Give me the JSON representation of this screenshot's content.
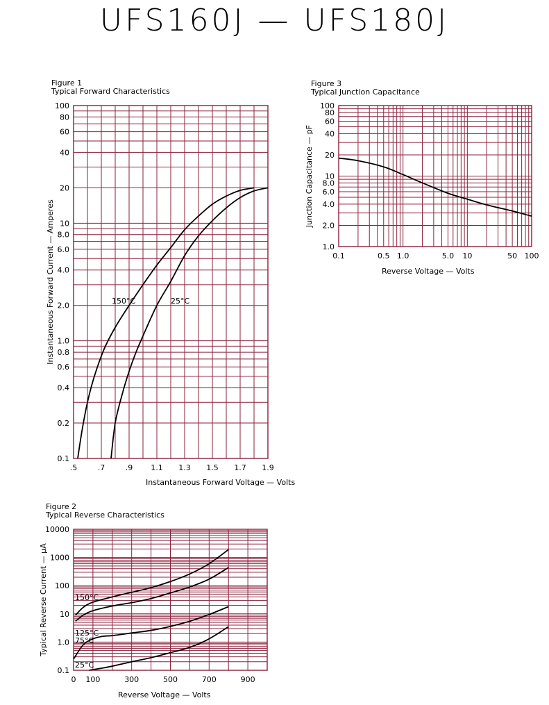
{
  "page_title": "UFS160J — UFS180J",
  "colors": {
    "grid": "#8a1f3a",
    "curve": "#000000"
  },
  "chart_data": [
    {
      "id": "fig1",
      "figure_label": "Figure 1",
      "title": "Typical Forward Characteristics",
      "type": "line",
      "xlabel": "Instantaneous Forward Voltage — Volts",
      "ylabel": "Instantaneous Forward Current — Amperes",
      "xscale": "linear",
      "yscale": "log",
      "xlim": [
        0.5,
        1.9
      ],
      "ylim": [
        0.1,
        100
      ],
      "grid": true,
      "x_ticks": [
        0.5,
        0.7,
        0.9,
        1.1,
        1.3,
        1.5,
        1.7,
        1.9
      ],
      "x_tick_labels": [
        ".5",
        ".7",
        ".9",
        "1.1",
        "1.3",
        "1.5",
        "1.7",
        "1.9"
      ],
      "x_grid": [
        0.5,
        0.6,
        0.7,
        0.8,
        0.9,
        1.0,
        1.1,
        1.2,
        1.3,
        1.4,
        1.5,
        1.6,
        1.7,
        1.8,
        1.9
      ],
      "y_ticks": [
        0.1,
        0.2,
        0.4,
        0.6,
        0.8,
        1.0,
        2.0,
        4.0,
        6.0,
        8.0,
        10,
        20,
        40,
        60,
        80,
        100
      ],
      "y_tick_labels": [
        "0.1",
        "0.2",
        "0.4",
        "0.6",
        "0.8",
        "1.0",
        "2.0",
        "4.0",
        "6.0",
        "8.0",
        "10",
        "20",
        "40",
        "60",
        "80",
        "100"
      ],
      "y_grid": [
        0.1,
        0.2,
        0.3,
        0.4,
        0.5,
        0.6,
        0.7,
        0.8,
        0.9,
        1,
        2,
        3,
        4,
        5,
        6,
        7,
        8,
        9,
        10,
        20,
        30,
        40,
        50,
        60,
        70,
        80,
        90,
        100
      ],
      "series": [
        {
          "name": "150°C",
          "points": [
            [
              0.53,
              0.1
            ],
            [
              0.56,
              0.17
            ],
            [
              0.6,
              0.3
            ],
            [
              0.65,
              0.5
            ],
            [
              0.72,
              0.85
            ],
            [
              0.8,
              1.3
            ],
            [
              0.9,
              2.0
            ],
            [
              1.0,
              3.0
            ],
            [
              1.1,
              4.4
            ],
            [
              1.2,
              6.2
            ],
            [
              1.3,
              8.8
            ],
            [
              1.4,
              11.5
            ],
            [
              1.5,
              14.5
            ],
            [
              1.6,
              17.0
            ],
            [
              1.7,
              19.0
            ],
            [
              1.8,
              20.0
            ]
          ]
        },
        {
          "name": "25°C",
          "points": [
            [
              0.77,
              0.1
            ],
            [
              0.8,
              0.2
            ],
            [
              0.85,
              0.35
            ],
            [
              0.9,
              0.55
            ],
            [
              0.95,
              0.8
            ],
            [
              1.0,
              1.1
            ],
            [
              1.1,
              2.0
            ],
            [
              1.2,
              3.2
            ],
            [
              1.3,
              5.3
            ],
            [
              1.4,
              7.8
            ],
            [
              1.5,
              10.5
            ],
            [
              1.6,
              13.5
            ],
            [
              1.7,
              16.5
            ],
            [
              1.8,
              18.8
            ],
            [
              1.9,
              20.0
            ]
          ]
        }
      ]
    },
    {
      "id": "fig3",
      "figure_label": "Figure 3",
      "title": "Typical Junction Capacitance",
      "type": "line",
      "xlabel": "Reverse Voltage — Volts",
      "ylabel": "Junction Capacitance — pF",
      "xscale": "log",
      "yscale": "log",
      "xlim": [
        0.1,
        100
      ],
      "ylim": [
        1.0,
        100
      ],
      "grid": true,
      "x_ticks": [
        0.1,
        0.5,
        1.0,
        5.0,
        10,
        50,
        100
      ],
      "x_tick_labels": [
        "0.1",
        "0.5",
        "1.0",
        "5.0",
        "10",
        "50",
        "100"
      ],
      "x_grid": [
        0.1,
        0.2,
        0.3,
        0.4,
        0.5,
        0.6,
        0.7,
        0.8,
        0.9,
        1,
        2,
        3,
        4,
        5,
        6,
        7,
        8,
        9,
        10,
        20,
        30,
        40,
        50,
        60,
        70,
        80,
        90,
        100
      ],
      "y_ticks": [
        1.0,
        2.0,
        4.0,
        6.0,
        8.0,
        10,
        20,
        40,
        60,
        80,
        100
      ],
      "y_tick_labels": [
        "1.0",
        "2.0",
        "4.0",
        "6.0",
        "8.0",
        "10",
        "20",
        "40",
        "60",
        "80",
        "100"
      ],
      "y_grid": [
        1,
        2,
        3,
        4,
        5,
        6,
        7,
        8,
        9,
        10,
        20,
        30,
        40,
        50,
        60,
        70,
        80,
        90,
        100
      ],
      "series": [
        {
          "points": [
            [
              0.1,
              18.0
            ],
            [
              0.2,
              16.5
            ],
            [
              0.5,
              13.5
            ],
            [
              1.0,
              10.5
            ],
            [
              2.0,
              8.0
            ],
            [
              5.0,
              5.7
            ],
            [
              10,
              4.7
            ],
            [
              20,
              3.9
            ],
            [
              50,
              3.2
            ],
            [
              100,
              2.7
            ]
          ]
        }
      ]
    },
    {
      "id": "fig2",
      "figure_label": "Figure 2",
      "title": "Typical Reverse Characteristics",
      "type": "line",
      "xlabel": "Reverse Voltage — Volts",
      "ylabel": "Typical Reverse Current — µA",
      "xscale": "linear",
      "yscale": "log",
      "xlim": [
        0,
        1000
      ],
      "ylim": [
        0.1,
        10000
      ],
      "grid": true,
      "x_ticks": [
        0,
        100,
        300,
        500,
        700,
        900
      ],
      "x_tick_labels": [
        "0",
        "100",
        "300",
        "500",
        "700",
        "900"
      ],
      "x_grid": [
        0,
        100,
        200,
        300,
        400,
        500,
        600,
        700,
        800,
        900,
        1000
      ],
      "y_ticks": [
        0.1,
        1.0,
        10,
        100,
        1000,
        10000
      ],
      "y_tick_labels": [
        "0.1",
        "1.0",
        "10",
        "100",
        "1000",
        "10000"
      ],
      "y_grid": [
        0.1,
        0.2,
        0.3,
        0.4,
        0.5,
        0.6,
        0.7,
        0.8,
        0.9,
        1,
        2,
        3,
        4,
        5,
        6,
        7,
        8,
        9,
        10,
        20,
        30,
        40,
        50,
        60,
        70,
        80,
        90,
        100,
        200,
        300,
        400,
        500,
        600,
        700,
        800,
        900,
        1000,
        2000,
        3000,
        4000,
        5000,
        6000,
        7000,
        8000,
        9000,
        10000
      ],
      "series": [
        {
          "name": "150°C",
          "points": [
            [
              10,
              9
            ],
            [
              50,
              17
            ],
            [
              100,
              26
            ],
            [
              200,
              40
            ],
            [
              300,
              58
            ],
            [
              400,
              85
            ],
            [
              500,
              140
            ],
            [
              600,
              260
            ],
            [
              700,
              600
            ],
            [
              800,
              1900
            ]
          ]
        },
        {
          "name": "125°C",
          "points": [
            [
              10,
              5.5
            ],
            [
              50,
              9
            ],
            [
              100,
              13
            ],
            [
              200,
              19
            ],
            [
              300,
              25
            ],
            [
              400,
              35
            ],
            [
              500,
              55
            ],
            [
              600,
              90
            ],
            [
              700,
              170
            ],
            [
              800,
              440
            ]
          ]
        },
        {
          "name": "75°C",
          "points": [
            [
              0,
              0.25
            ],
            [
              50,
              0.8
            ],
            [
              100,
              1.3
            ],
            [
              150,
              1.6
            ],
            [
              200,
              1.7
            ],
            [
              300,
              2.1
            ],
            [
              400,
              2.6
            ],
            [
              500,
              3.6
            ],
            [
              600,
              5.5
            ],
            [
              700,
              9.5
            ],
            [
              800,
              18
            ]
          ]
        },
        {
          "name": "25°C",
          "points": [
            [
              80,
              0.1
            ],
            [
              150,
              0.12
            ],
            [
              200,
              0.14
            ],
            [
              300,
              0.2
            ],
            [
              400,
              0.28
            ],
            [
              500,
              0.42
            ],
            [
              600,
              0.65
            ],
            [
              700,
              1.3
            ],
            [
              800,
              3.5
            ]
          ]
        }
      ]
    }
  ]
}
